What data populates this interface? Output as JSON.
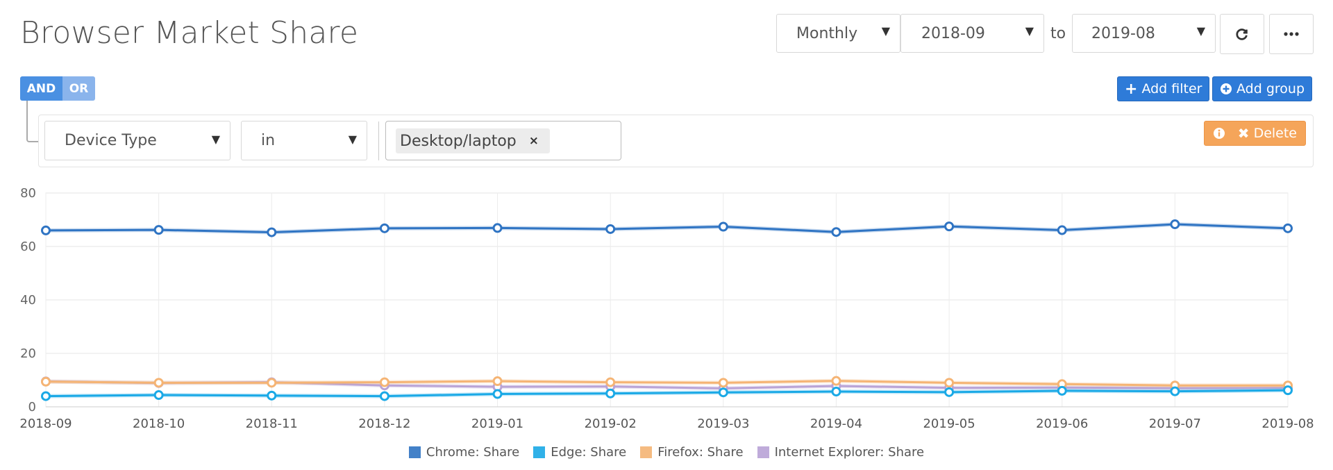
{
  "header": {
    "title": "Browser Market Share",
    "interval_value": "Monthly",
    "from_value": "2018-09",
    "to_label": "to",
    "to_value": "2019-08",
    "refresh_icon": "refresh-icon",
    "more_icon": "ellipsis-icon"
  },
  "filters": {
    "and_label": "AND",
    "or_label": "OR",
    "add_filter_label": "Add filter",
    "add_group_label": "Add group",
    "field_value": "Device Type",
    "operator_value": "in",
    "tag_value": "Desktop/laptop",
    "tag_remove": "×",
    "delete_label": "Delete"
  },
  "colors": {
    "chrome": "#2f74c3",
    "edge": "#1aa9e6",
    "firefox": "#f5b474",
    "ie": "#b9a3d6",
    "accent": "#2e7bd8",
    "warning": "#f5a55a"
  },
  "chart_data": {
    "type": "line",
    "categories": [
      "2018-09",
      "2018-10",
      "2018-11",
      "2018-12",
      "2019-01",
      "2019-02",
      "2019-03",
      "2019-04",
      "2019-05",
      "2019-06",
      "2019-07",
      "2019-08"
    ],
    "ylim": [
      0,
      80
    ],
    "yticks": [
      "0",
      "20",
      "40",
      "60",
      "80"
    ],
    "grid": true,
    "legend_position": "bottom",
    "series": [
      {
        "name": "Chrome: Share",
        "values": [
          66.0,
          66.2,
          65.3,
          66.8,
          66.9,
          66.5,
          67.4,
          65.4,
          67.5,
          66.1,
          68.3,
          66.8
        ]
      },
      {
        "name": "Edge: Share",
        "values": [
          4.0,
          4.4,
          4.2,
          4.0,
          4.8,
          5.0,
          5.4,
          5.7,
          5.5,
          6.0,
          5.8,
          6.2
        ]
      },
      {
        "name": "Firefox: Share",
        "values": [
          9.4,
          9.0,
          9.0,
          9.2,
          9.6,
          9.2,
          9.0,
          9.7,
          9.0,
          8.5,
          8.0,
          8.0
        ]
      },
      {
        "name": "Internet Explorer: Share",
        "values": [
          9.5,
          8.9,
          9.2,
          8.0,
          7.5,
          7.6,
          6.9,
          7.8,
          7.1,
          7.2,
          7.0,
          7.1
        ]
      }
    ]
  }
}
